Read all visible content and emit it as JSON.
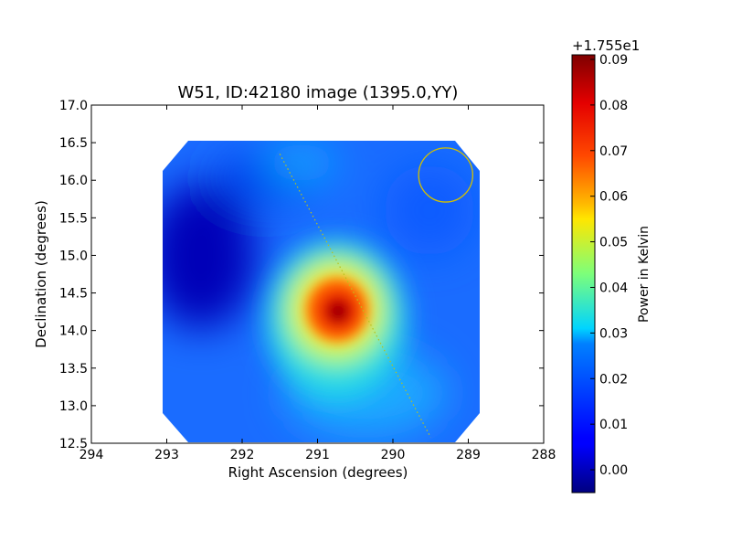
{
  "chart_data": {
    "type": "heatmap",
    "title": "W51, ID:42180 image (1395.0,YY)",
    "xlabel": "Right Ascension (degrees)",
    "ylabel": "Declination (degrees)",
    "xlim": [
      294,
      288
    ],
    "ylim": [
      12.5,
      17.0
    ],
    "x_ticks": [
      "294",
      "293",
      "292",
      "291",
      "290",
      "289",
      "288"
    ],
    "y_ticks": [
      "12.5",
      "13.0",
      "13.5",
      "14.0",
      "14.5",
      "15.0",
      "15.5",
      "16.0",
      "16.5",
      "17.0"
    ],
    "colormap": "jet",
    "colorbar": {
      "label": "Power in Kelvin",
      "offset_label": "+1.755e1",
      "range": [
        -0.005,
        0.091
      ],
      "ticks": [
        "0.00",
        "0.01",
        "0.02",
        "0.03",
        "0.04",
        "0.05",
        "0.06",
        "0.07",
        "0.08",
        "0.09"
      ]
    },
    "map_extent": {
      "ra": [
        293.05,
        288.85
      ],
      "dec": [
        12.5,
        16.5
      ]
    },
    "peak": {
      "ra": 290.75,
      "dec": 14.25,
      "value": 0.091
    },
    "beam_circle": {
      "ra": 289.3,
      "dec": 16.07,
      "radius_deg": 0.36,
      "color": "#d4c100"
    },
    "scan_track": {
      "from": {
        "ra": 291.5,
        "dec": 16.35
      },
      "to": {
        "ra": 289.5,
        "dec": 12.58
      },
      "color": "#b9c21a"
    }
  }
}
